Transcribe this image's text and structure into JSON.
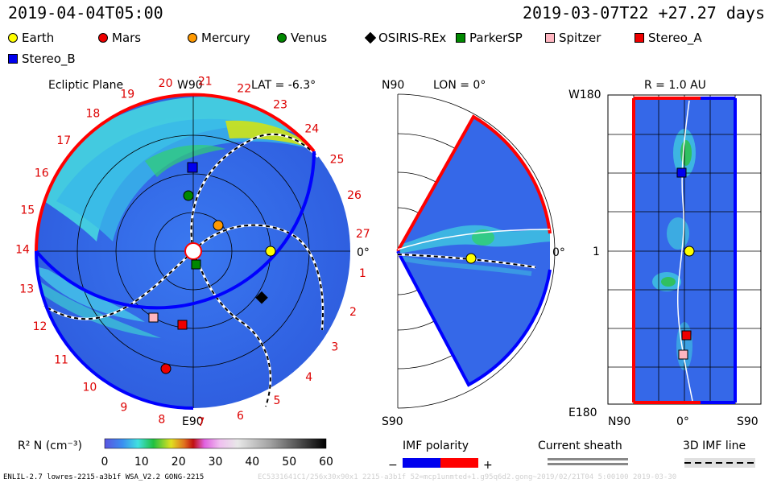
{
  "header": {
    "left_time": "2019-04-04T05:00",
    "right_time": "2019-03-07T22 +27.27 days"
  },
  "legend": [
    {
      "name": "Earth",
      "color": "#ffff00",
      "shape": "circle"
    },
    {
      "name": "Mars",
      "color": "#ee0000",
      "shape": "circle"
    },
    {
      "name": "Mercury",
      "color": "#ff9900",
      "shape": "circle"
    },
    {
      "name": "Venus",
      "color": "#008800",
      "shape": "circle"
    },
    {
      "name": "OSIRIS-REx",
      "color": "#000000",
      "shape": "diamond"
    },
    {
      "name": "ParkerSP",
      "color": "#008800",
      "shape": "square"
    },
    {
      "name": "Spitzer",
      "color": "#ffb6c1",
      "shape": "square"
    },
    {
      "name": "Stereo_A",
      "color": "#ee0000",
      "shape": "square"
    },
    {
      "name": "Stereo_B",
      "color": "#0000ee",
      "shape": "square"
    }
  ],
  "panels": {
    "ecliptic": {
      "title": "Ecliptic Plane",
      "top_label": "W90",
      "bottom_label": "E90",
      "right_label": "0°",
      "lat_label": "LAT = -6.3°",
      "carrington_labels": [
        "1",
        "2",
        "3",
        "4",
        "5",
        "6",
        "7",
        "8",
        "9",
        "10",
        "11",
        "12",
        "13",
        "14",
        "15",
        "16",
        "17",
        "18",
        "19",
        "20",
        "21",
        "22",
        "23",
        "24",
        "25",
        "26",
        "27"
      ]
    },
    "meridional": {
      "top_label": "N90",
      "bottom_label": "S90",
      "lon_label": "LON = 0°",
      "right_label": "0°"
    },
    "radial": {
      "title": "R = 1.0 AU",
      "top_left": "W180",
      "bottom_left": "E180",
      "mid_left": "1",
      "x_labels": [
        "N90",
        "0°",
        "S90"
      ]
    }
  },
  "colorbar": {
    "label": "R² N (cm⁻³)",
    "ticks": [
      "0",
      "10",
      "20",
      "30",
      "40",
      "50",
      "60"
    ]
  },
  "imf": {
    "title": "IMF polarity",
    "minus": "−",
    "plus": "+",
    "current_sheath": "Current sheath",
    "imf_line": "3D IMF line"
  },
  "footer": {
    "left": "ENLIL-2.7 lowres-2215-a3b1f WSA_V2.2 GONG-2215",
    "ghost": "EC5331641C1/256x30x90x1 2215-a3b1f 52=mcp1unmted+1.g95q6d2.gong~2019/02/21T04 5:00100 2019-03-30"
  },
  "chart_data": {
    "type": "heatmap",
    "title": "R² N (cm⁻³)",
    "colorbar_range": [
      0,
      60
    ],
    "epoch": "2019-04-04T05:00",
    "model": "ENLIL-2.7",
    "bodies": [
      "Earth",
      "Mars",
      "Mercury",
      "Venus",
      "OSIRIS-REx",
      "ParkerSP",
      "Spitzer",
      "Stereo_A",
      "Stereo_B"
    ]
  }
}
